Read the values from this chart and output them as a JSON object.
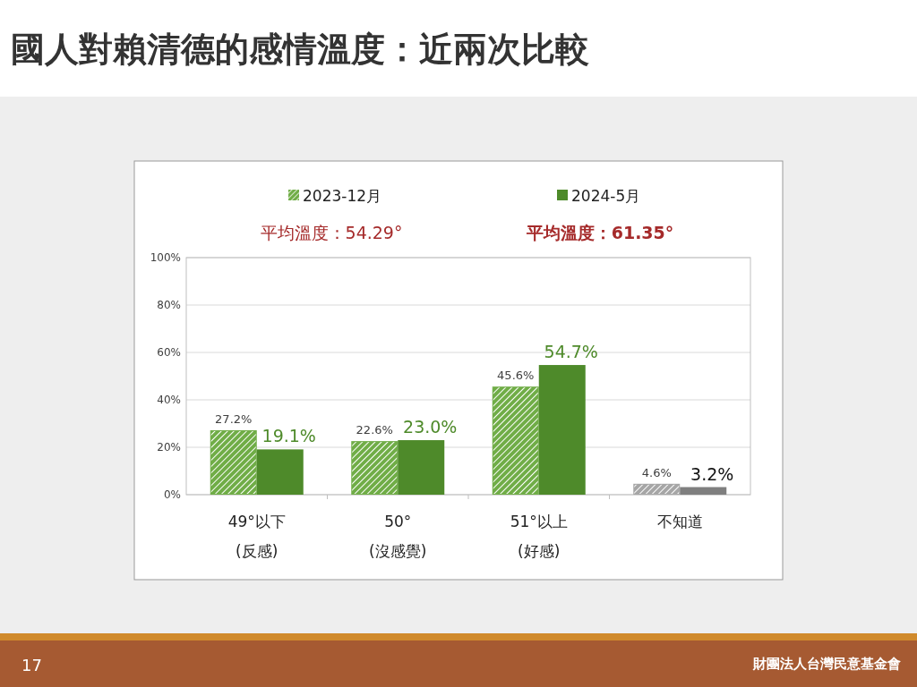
{
  "chart_data": {
    "type": "bar",
    "title": "國人對賴清德的感情溫度：近兩次比較",
    "categories": [
      "49°以下\n(反感)",
      "50°\n(沒感覺)",
      "51°以上\n(好感)",
      "不知道"
    ],
    "series": [
      {
        "name": "2023-12月",
        "color": "#70ad47",
        "colors": [
          "#70ad47",
          "#70ad47",
          "#70ad47",
          "#a6a6a6"
        ],
        "values": [
          27.2,
          22.6,
          45.6,
          4.6
        ],
        "value_labels": [
          "27.2%",
          "22.6%",
          "45.6%",
          "4.6%"
        ]
      },
      {
        "name": "2024-5月",
        "color": "#4e8a2a",
        "colors": [
          "#4e8a2a",
          "#4e8a2a",
          "#4e8a2a",
          "#7f7f7f"
        ],
        "values": [
          19.1,
          23.0,
          54.7,
          3.2
        ],
        "value_labels": [
          "19.1%",
          "23.0%",
          "54.7%",
          "3.2%"
        ]
      }
    ],
    "ylim": [
      0,
      100
    ],
    "yticks": [
      {
        "value": 0,
        "label": "0%"
      },
      {
        "value": 20,
        "label": "20%"
      },
      {
        "value": 40,
        "label": "40%"
      },
      {
        "value": 60,
        "label": "60%"
      },
      {
        "value": 80,
        "label": "80%"
      },
      {
        "value": 100,
        "label": "100%"
      }
    ],
    "grid": "y",
    "legend": "top",
    "annotations": [
      "平均溫度：54.29°",
      "平均溫度：61.35°",
      "17",
      "財團法人台灣民意基金會"
    ]
  }
}
